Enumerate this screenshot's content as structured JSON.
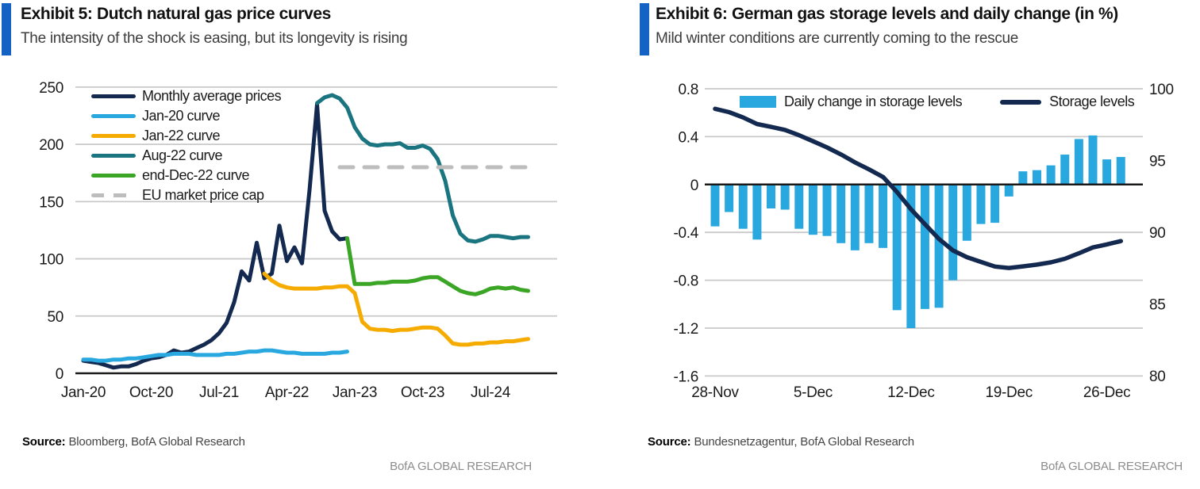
{
  "colors": {
    "accent_bar": "#1362C4",
    "navy": "#13294F",
    "light_blue": "#29A8E0",
    "yellow": "#F5AB00",
    "teal": "#1A7580",
    "green": "#3BA626",
    "cap_gray": "#BDBDBD",
    "grid_gray": "#C9C9C9",
    "axis_black": "#1a1a1a",
    "footer_gray": "#8c8c8c"
  },
  "left_panel": {
    "exhibit_title": "Exhibit 5: Dutch natural gas price curves",
    "subtitle": "The intensity of the shock is easing, but its longevity is rising",
    "source_label": "Source:",
    "source_text": "Bloomberg, BofA Global Research",
    "footer": "BofA GLOBAL RESEARCH"
  },
  "right_panel": {
    "exhibit_title": "Exhibit 6: German gas storage levels and daily change (in %)",
    "subtitle": "Mild winter conditions are currently coming to the rescue",
    "source_label": "Source:",
    "source_text": "Bundesnetzagentur, BofA Global Research",
    "footer": "BofA GLOBAL RESEARCH"
  },
  "chart_data": [
    {
      "type": "line",
      "title": "Exhibit 5: Dutch natural gas price curves",
      "ylim": [
        0,
        250
      ],
      "yticks": [
        0,
        50,
        100,
        150,
        200,
        250
      ],
      "grid": "horizontal",
      "legend_position": "top-left",
      "x_unit": "months since Jan-2020",
      "x_ticks": [
        {
          "pos": 0,
          "label": "Jan-20"
        },
        {
          "pos": 9,
          "label": "Oct-20"
        },
        {
          "pos": 18,
          "label": "Jul-21"
        },
        {
          "pos": 27,
          "label": "Apr-22"
        },
        {
          "pos": 36,
          "label": "Jan-23"
        },
        {
          "pos": 45,
          "label": "Oct-23"
        },
        {
          "pos": 54,
          "label": "Jul-24"
        }
      ],
      "series": [
        {
          "name": "Monthly average prices",
          "color": "#13294F",
          "start": 0,
          "values": [
            11,
            10,
            9,
            7,
            5,
            6,
            6,
            8,
            11,
            13,
            14,
            16,
            20,
            18,
            19,
            22,
            25,
            29,
            35,
            44,
            62,
            89,
            81,
            114,
            83,
            87,
            129,
            98,
            110,
            96,
            160,
            235,
            142,
            124,
            117,
            118
          ]
        },
        {
          "name": "Jan-20 curve",
          "color": "#29A8E0",
          "start": 0,
          "values": [
            12,
            12,
            11,
            11,
            12,
            12,
            13,
            13,
            14,
            15,
            16,
            16,
            17,
            17,
            17,
            16,
            16,
            16,
            16,
            17,
            17,
            18,
            19,
            19,
            20,
            20,
            19,
            18,
            18,
            17,
            17,
            17,
            17,
            18,
            18,
            19
          ]
        },
        {
          "name": "Jan-22 curve",
          "color": "#F5AB00",
          "start": 24,
          "values": [
            87,
            81,
            77,
            75,
            74,
            74,
            74,
            74,
            75,
            75,
            76,
            76,
            70,
            45,
            39,
            38,
            38,
            37,
            38,
            38,
            39,
            40,
            40,
            39,
            33,
            26,
            25,
            25,
            26,
            26,
            27,
            27,
            28,
            28,
            29,
            30
          ]
        },
        {
          "name": "Aug-22 curve",
          "color": "#1A7580",
          "start": 31,
          "values": [
            236,
            241,
            243,
            240,
            232,
            215,
            205,
            200,
            199,
            200,
            200,
            201,
            197,
            197,
            199,
            196,
            187,
            168,
            138,
            122,
            116,
            115,
            117,
            120,
            120,
            119,
            118,
            119,
            119
          ]
        },
        {
          "name": "end-Dec-22 curve",
          "color": "#3BA626",
          "start": 35,
          "values": [
            118,
            78,
            78,
            78,
            79,
            79,
            80,
            80,
            80,
            81,
            83,
            84,
            84,
            80,
            76,
            72,
            70,
            69,
            71,
            74,
            75,
            74,
            75,
            73,
            72
          ]
        },
        {
          "name": "EU market price cap",
          "color": "#BDBDBD",
          "dash": true,
          "x": [
            34,
            59
          ],
          "values": [
            180,
            180
          ]
        }
      ]
    },
    {
      "type": "bar",
      "title": "Exhibit 6: German gas storage levels and daily change (in %)",
      "categories": [
        "28-Nov",
        "29-Nov",
        "30-Nov",
        "1-Dec",
        "2-Dec",
        "3-Dec",
        "4-Dec",
        "5-Dec",
        "6-Dec",
        "7-Dec",
        "8-Dec",
        "9-Dec",
        "10-Dec",
        "11-Dec",
        "12-Dec",
        "13-Dec",
        "14-Dec",
        "15-Dec",
        "16-Dec",
        "17-Dec",
        "18-Dec",
        "19-Dec",
        "20-Dec",
        "21-Dec",
        "22-Dec",
        "23-Dec",
        "24-Dec",
        "25-Dec",
        "26-Dec",
        "27-Dec"
      ],
      "left_axis": {
        "ticks": [
          0.8,
          0.4,
          0,
          -0.4,
          -0.8,
          -1.2,
          -1.6
        ],
        "labels": [
          "0.8",
          "0.4",
          "0",
          "-0.4",
          "-0.8",
          "-1.2",
          "-1.6"
        ],
        "ylim": [
          -1.6,
          0.8
        ]
      },
      "right_axis": {
        "ticks": [
          100,
          95,
          90,
          85,
          80
        ],
        "ylim": [
          80,
          100
        ]
      },
      "x_ticks": [
        {
          "pos": 0,
          "label": "28-Nov"
        },
        {
          "pos": 7,
          "label": "5-Dec"
        },
        {
          "pos": 14,
          "label": "12-Dec"
        },
        {
          "pos": 21,
          "label": "19-Dec"
        },
        {
          "pos": 28,
          "label": "26-Dec"
        }
      ],
      "series": [
        {
          "name": "Daily change in storage levels",
          "type": "bar",
          "axis": "left",
          "color": "#29A8E0",
          "values": [
            -0.35,
            -0.23,
            -0.37,
            -0.46,
            -0.2,
            -0.21,
            -0.37,
            -0.42,
            -0.43,
            -0.49,
            -0.55,
            -0.49,
            -0.53,
            -1.05,
            -1.2,
            -1.04,
            -1.03,
            -0.8,
            -0.47,
            -0.33,
            -0.32,
            -0.1,
            0.11,
            0.12,
            0.16,
            0.25,
            0.38,
            0.41,
            0.21,
            0.23
          ]
        },
        {
          "name": "Storage levels",
          "type": "line",
          "axis": "right",
          "color": "#13294F",
          "values": [
            98.6,
            98.37,
            98.0,
            97.54,
            97.34,
            97.13,
            96.76,
            96.34,
            95.91,
            95.42,
            94.87,
            94.38,
            93.85,
            92.8,
            91.6,
            90.56,
            89.53,
            88.73,
            88.26,
            87.93,
            87.61,
            87.51,
            87.62,
            87.74,
            87.9,
            88.15,
            88.53,
            88.94,
            89.15,
            89.38
          ]
        }
      ]
    }
  ]
}
